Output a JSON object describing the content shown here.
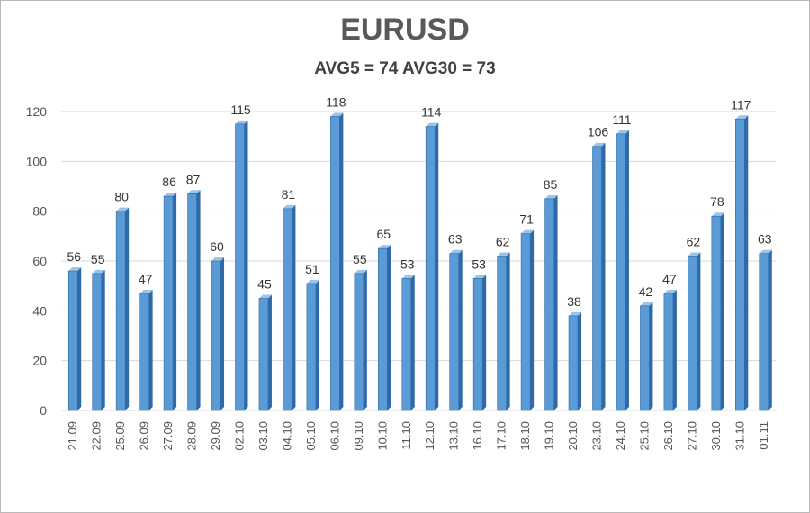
{
  "chart_data": {
    "type": "bar",
    "title": "EURUSD",
    "subtitle": "AVG5 = 74 AVG30 = 73",
    "categories": [
      "21.09",
      "22.09",
      "25.09",
      "26.09",
      "27.09",
      "28.09",
      "29.09",
      "02.10",
      "03.10",
      "04.10",
      "05.10",
      "06.10",
      "09.10",
      "10.10",
      "11.10",
      "12.10",
      "13.10",
      "16.10",
      "17.10",
      "18.10",
      "19.10",
      "20.10",
      "23.10",
      "24.10",
      "25.10",
      "26.10",
      "27.10",
      "30.10",
      "31.10",
      "01.11"
    ],
    "values": [
      56,
      55,
      80,
      47,
      86,
      87,
      60,
      115,
      45,
      81,
      51,
      118,
      55,
      65,
      53,
      114,
      63,
      53,
      62,
      71,
      85,
      38,
      106,
      111,
      42,
      47,
      62,
      78,
      117,
      63
    ],
    "ylim": [
      0,
      120
    ],
    "yticks": [
      0,
      20,
      40,
      60,
      80,
      100,
      120
    ],
    "grid": true,
    "bar_color": "#5b9bd5",
    "bar_dark_color": "#2e6aa8",
    "grid_color": "#d9d9d9",
    "xlabel": "",
    "ylabel": ""
  }
}
